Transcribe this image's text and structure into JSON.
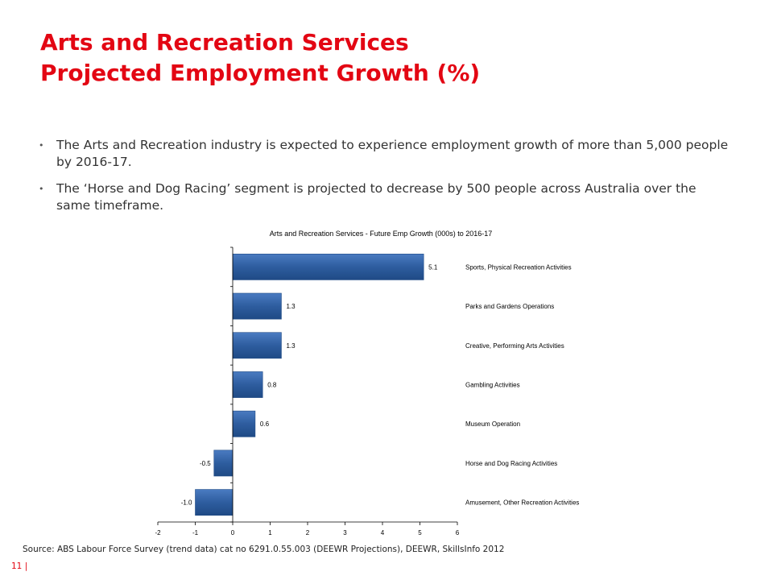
{
  "slide": {
    "title_line1": "Arts and Recreation Services",
    "title_line2": "Projected Employment Growth (%)",
    "bullets": [
      "The Arts and Recreation industry is expected to experience employment growth of more than 5,000 people by 2016-17.",
      "The ‘Horse and Dog Racing’ segment is projected to decrease by 500 people across Australia over the same timeframe."
    ],
    "source": "Source: ABS Labour Force Survey (trend data) cat no 6291.0.55.003 (DEEWR Projections), DEEWR, SkillsInfo 2012",
    "page_number": "11 |"
  },
  "colors": {
    "accent": "#e30613",
    "bar": "#2e5d9f"
  },
  "chart_data": {
    "type": "bar",
    "orientation": "horizontal",
    "title": "Arts and Recreation Services - Future Emp Growth (000s) to 2016-17",
    "categories": [
      "Sports, Physical Recreation Activities",
      "Parks and Gardens Operations",
      "Creative, Performing Arts Activities",
      "Gambling Activities",
      "Museum Operation",
      "Horse and Dog Racing Activities",
      "Amusement, Other Recreation Activities"
    ],
    "values": [
      5.1,
      1.3,
      1.3,
      0.8,
      0.6,
      -0.5,
      -1.0
    ],
    "data_labels": [
      "5.1",
      "1.3",
      "1.3",
      "0.8",
      "0.6",
      "-0.5",
      "-1.0"
    ],
    "xlim": [
      -2,
      6
    ],
    "xticks": [
      -2,
      -1,
      0,
      1,
      2,
      3,
      4,
      5,
      6
    ],
    "grid": false,
    "legend": "none"
  }
}
